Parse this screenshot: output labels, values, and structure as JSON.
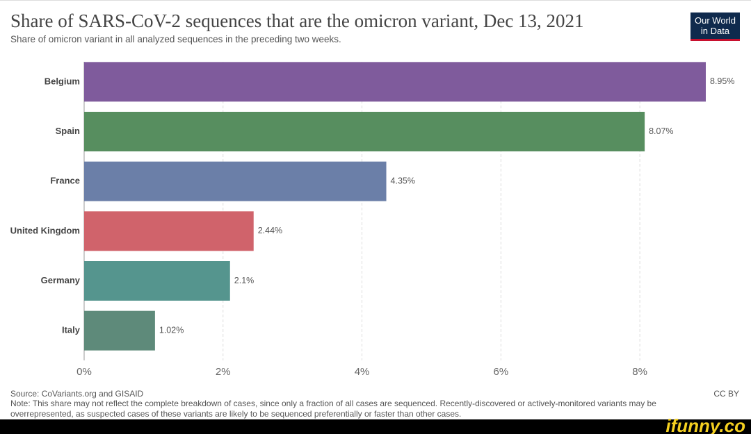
{
  "chart_data": {
    "type": "bar",
    "orientation": "horizontal",
    "title": "Share of SARS-CoV-2 sequences that are the omicron variant, Dec 13, 2021",
    "subtitle": "Share of omicron variant in all analyzed sequences in the preceding two weeks.",
    "categories": [
      "Belgium",
      "Spain",
      "France",
      "United Kingdom",
      "Germany",
      "Italy"
    ],
    "values": [
      8.95,
      8.07,
      4.35,
      2.44,
      2.1,
      1.02
    ],
    "value_labels": [
      "8.95%",
      "8.07%",
      "4.35%",
      "2.44%",
      "2.1%",
      "1.02%"
    ],
    "colors": [
      "#7f5b9c",
      "#578e5f",
      "#6b7fa8",
      "#d0636b",
      "#55958e",
      "#5e8a7a"
    ],
    "xlim": [
      0,
      9
    ],
    "xticks": [
      {
        "value": 0,
        "label": "0%"
      },
      {
        "value": 2,
        "label": "2%"
      },
      {
        "value": 4,
        "label": "4%"
      },
      {
        "value": 6,
        "label": "6%"
      },
      {
        "value": 8,
        "label": "8%"
      }
    ],
    "grid": true,
    "source": "Source: CoVariants.org and GISAID",
    "note": "Note: This share may not reflect the complete breakdown of cases, since only a fraction of all cases are sequenced. Recently-discovered or actively-monitored variants may be overrepresented, as suspected cases of these variants are likely to be sequenced preferentially or faster than other cases.",
    "license": "CC BY"
  },
  "logo": {
    "line1": "Our World",
    "line2": "in Data"
  },
  "watermark": "ifunny.co"
}
